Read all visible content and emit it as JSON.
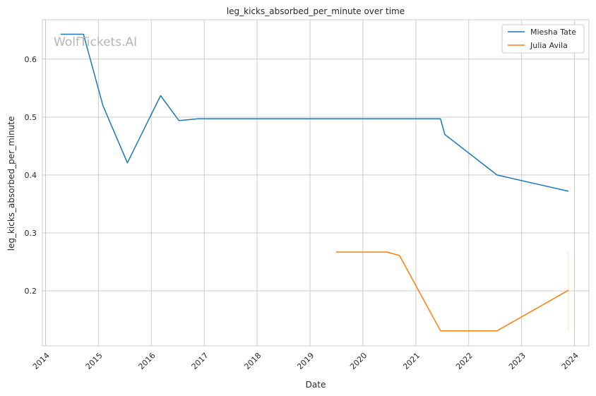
{
  "chart_data": {
    "type": "line",
    "title": "leg_kicks_absorbed_per_minute over time",
    "xlabel": "Date",
    "ylabel": "leg_kicks_absorbed_per_minute",
    "watermark": "WolfTickets.AI",
    "x_ticks": [
      "2014",
      "2015",
      "2016",
      "2017",
      "2018",
      "2019",
      "2020",
      "2021",
      "2022",
      "2023",
      "2024"
    ],
    "y_ticks": [
      "0.2",
      "0.3",
      "0.4",
      "0.5",
      "0.6"
    ],
    "xlim": [
      "2013-12-10",
      "2024-04-10"
    ],
    "ylim": [
      0.105,
      0.668
    ],
    "grid": true,
    "legend_position": "top-right",
    "series": [
      {
        "name": "Miesha Tate",
        "color": "#1f77b4",
        "points": [
          {
            "x": "2014-04-15",
            "y": 0.643
          },
          {
            "x": "2014-09-20",
            "y": 0.643
          },
          {
            "x": "2015-02-01",
            "y": 0.52
          },
          {
            "x": "2015-07-20",
            "y": 0.421
          },
          {
            "x": "2016-03-05",
            "y": 0.537
          },
          {
            "x": "2016-07-10",
            "y": 0.494
          },
          {
            "x": "2016-11-20",
            "y": 0.497
          },
          {
            "x": "2021-06-20",
            "y": 0.497
          },
          {
            "x": "2021-07-20",
            "y": 0.47
          },
          {
            "x": "2022-07-15",
            "y": 0.4
          },
          {
            "x": "2023-11-20",
            "y": 0.372
          }
        ]
      },
      {
        "name": "Julia Avila",
        "color": "#ff7f0e",
        "points": [
          {
            "x": "2019-07-01",
            "y": 0.267
          },
          {
            "x": "2020-06-15",
            "y": 0.267
          },
          {
            "x": "2020-09-10",
            "y": 0.261
          },
          {
            "x": "2021-06-20",
            "y": 0.131
          },
          {
            "x": "2022-07-15",
            "y": 0.131
          },
          {
            "x": "2023-11-20",
            "y": 0.201
          }
        ]
      }
    ]
  }
}
